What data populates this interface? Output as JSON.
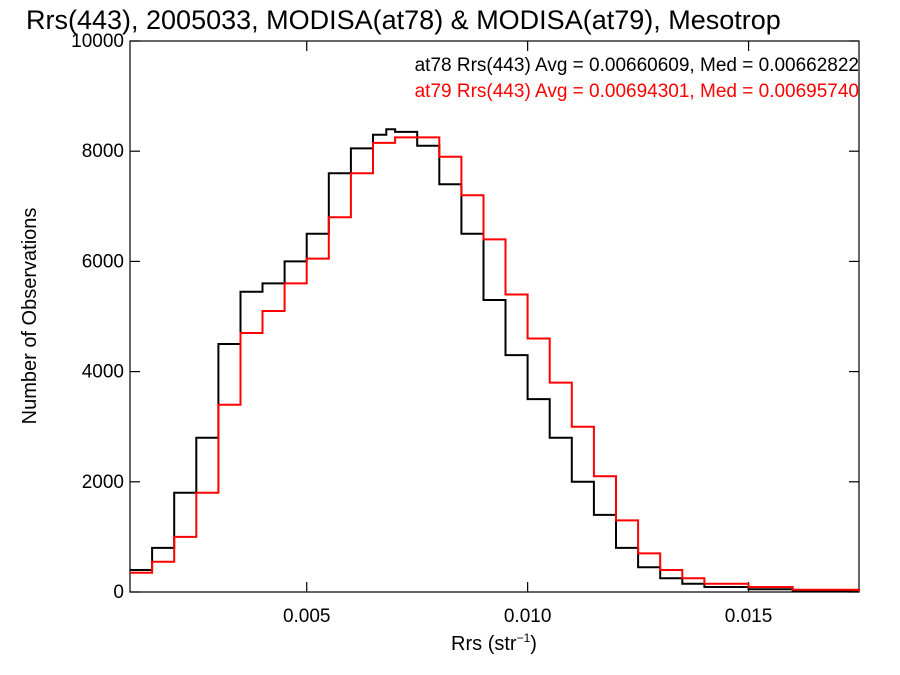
{
  "chart_data": {
    "type": "line",
    "title": "Rrs(443), 2005033, MODISA(at78) & MODISA(at79), Mesotrop",
    "xlabel": "Rrs (str",
    "xlabel_sup": "−1",
    "xlabel_close": ")",
    "ylabel": "Number of Observations",
    "xlim": [
      0.001,
      0.0175
    ],
    "ylim": [
      0,
      10000
    ],
    "x_ticks": [
      0.005,
      0.01,
      0.015
    ],
    "x_tick_labels": [
      "0.005",
      "0.010",
      "0.015"
    ],
    "y_ticks": [
      0,
      2000,
      4000,
      6000,
      8000,
      10000
    ],
    "y_tick_labels": [
      "0",
      "2000",
      "4000",
      "6000",
      "8000",
      "10000"
    ],
    "grid": false,
    "legend_position": "top-right",
    "colors": {
      "at78": "#000000",
      "at79": "#ff0000"
    },
    "series": [
      {
        "name": "at78",
        "legend_text": "at78 Rrs(443) Avg = 0.00660609, Med = 0.00662822",
        "color": "#000000",
        "x": [
          0.001,
          0.0015,
          0.002,
          0.0025,
          0.003,
          0.0035,
          0.004,
          0.0045,
          0.005,
          0.0055,
          0.006,
          0.0065,
          0.0068,
          0.007,
          0.0075,
          0.008,
          0.0085,
          0.009,
          0.0095,
          0.01,
          0.0105,
          0.011,
          0.0115,
          0.012,
          0.0125,
          0.013,
          0.0135,
          0.014,
          0.015,
          0.016,
          0.0175
        ],
        "y": [
          400,
          800,
          1800,
          2800,
          4500,
          5450,
          5600,
          6000,
          6500,
          7600,
          8050,
          8300,
          8400,
          8350,
          8100,
          7400,
          6500,
          5300,
          4300,
          3500,
          2800,
          2000,
          1400,
          800,
          450,
          250,
          150,
          90,
          50,
          25,
          10
        ]
      },
      {
        "name": "at79",
        "legend_text": "at79 Rrs(443) Avg = 0.00694301, Med = 0.00695740",
        "color": "#ff0000",
        "x": [
          0.001,
          0.0015,
          0.002,
          0.0025,
          0.003,
          0.0035,
          0.004,
          0.0045,
          0.005,
          0.0055,
          0.006,
          0.0065,
          0.007,
          0.0075,
          0.008,
          0.0085,
          0.009,
          0.0095,
          0.01,
          0.0105,
          0.011,
          0.0115,
          0.012,
          0.0125,
          0.013,
          0.0135,
          0.014,
          0.015,
          0.016,
          0.0175
        ],
        "y": [
          350,
          550,
          1000,
          1800,
          3400,
          4700,
          5100,
          5600,
          6050,
          6800,
          7600,
          8150,
          8250,
          8250,
          7900,
          7200,
          6400,
          5400,
          4600,
          3800,
          3000,
          2100,
          1300,
          700,
          400,
          250,
          150,
          90,
          40,
          10
        ]
      }
    ]
  }
}
